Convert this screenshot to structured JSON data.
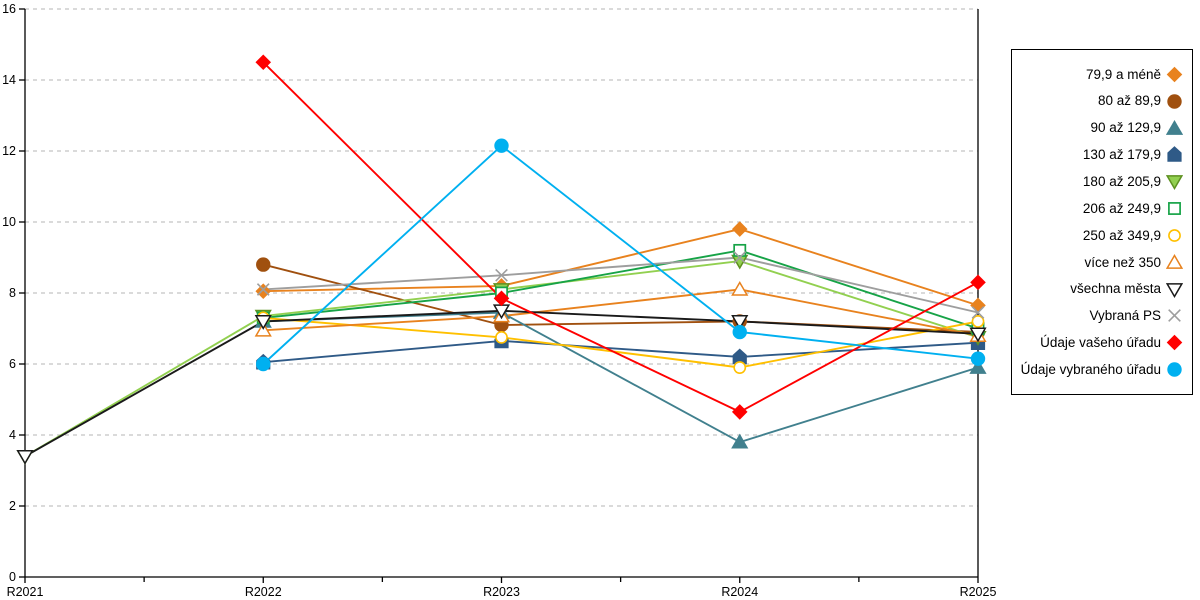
{
  "chart_data": {
    "type": "line",
    "title": "",
    "xlabel": "",
    "ylabel": "",
    "categories": [
      "R2021",
      "R2022",
      "R2023",
      "R2024",
      "R2025"
    ],
    "ylim": [
      0,
      16
    ],
    "yticks": [
      0,
      2,
      4,
      6,
      8,
      10,
      12,
      14,
      16
    ],
    "grid": "horizontal-dashed",
    "legend_position": "right-box",
    "colors": {
      "axis": "#000000",
      "grid": "#b5b5b5",
      "background": "#ffffff"
    },
    "series": [
      {
        "name": "79,9 a méně",
        "color": "#E8821E",
        "marker": "diamond",
        "filled": true,
        "values": [
          null,
          8.05,
          8.2,
          9.8,
          7.65
        ]
      },
      {
        "name": "80 až 89,9",
        "color": "#A0500F",
        "marker": "circle",
        "filled": true,
        "values": [
          null,
          8.8,
          7.1,
          7.2,
          6.9
        ]
      },
      {
        "name": "90 až 129,9",
        "color": "#41808E",
        "marker": "triangle-up",
        "filled": true,
        "values": [
          null,
          7.2,
          7.45,
          3.8,
          5.9
        ]
      },
      {
        "name": "130 až 179,9",
        "color": "#2F5A87",
        "marker": "pentagon",
        "filled": true,
        "values": [
          null,
          6.05,
          6.65,
          6.2,
          6.6
        ]
      },
      {
        "name": "180 až 205,9",
        "color": "#92D050",
        "marker": "triangle-down",
        "filled": true,
        "edge": "#5E9121",
        "values": [
          3.4,
          7.35,
          8.1,
          8.9,
          6.75
        ]
      },
      {
        "name": "206 až 249,9",
        "color": "#17A347",
        "marker": "square",
        "filled": false,
        "values": [
          null,
          7.3,
          8.0,
          9.2,
          7.0
        ]
      },
      {
        "name": "250 až 349,9",
        "color": "#FFC000",
        "marker": "circle",
        "filled": false,
        "values": [
          null,
          7.3,
          6.75,
          5.9,
          7.2
        ]
      },
      {
        "name": "více než 350",
        "color": "#E8821E",
        "marker": "triangle-up",
        "filled": false,
        "values": [
          null,
          6.95,
          7.35,
          8.1,
          6.8
        ]
      },
      {
        "name": "všechna města",
        "color": "#1A1A1A",
        "marker": "triangle-down",
        "filled": false,
        "values": [
          3.4,
          7.2,
          7.5,
          7.2,
          6.85
        ]
      },
      {
        "name": "Vybraná PS",
        "color": "#9E9E9E",
        "marker": "x",
        "filled": false,
        "values": [
          null,
          8.1,
          8.5,
          9.0,
          7.45
        ]
      },
      {
        "name": "Údaje vašeho úřadu",
        "color": "#FF0000",
        "marker": "diamond",
        "filled": true,
        "values": [
          null,
          14.5,
          7.85,
          4.65,
          8.3
        ]
      },
      {
        "name": "Údaje vybraného úřadu",
        "color": "#00B0F0",
        "marker": "circle",
        "filled": true,
        "values": [
          null,
          6.0,
          12.15,
          6.9,
          6.15
        ]
      }
    ]
  }
}
